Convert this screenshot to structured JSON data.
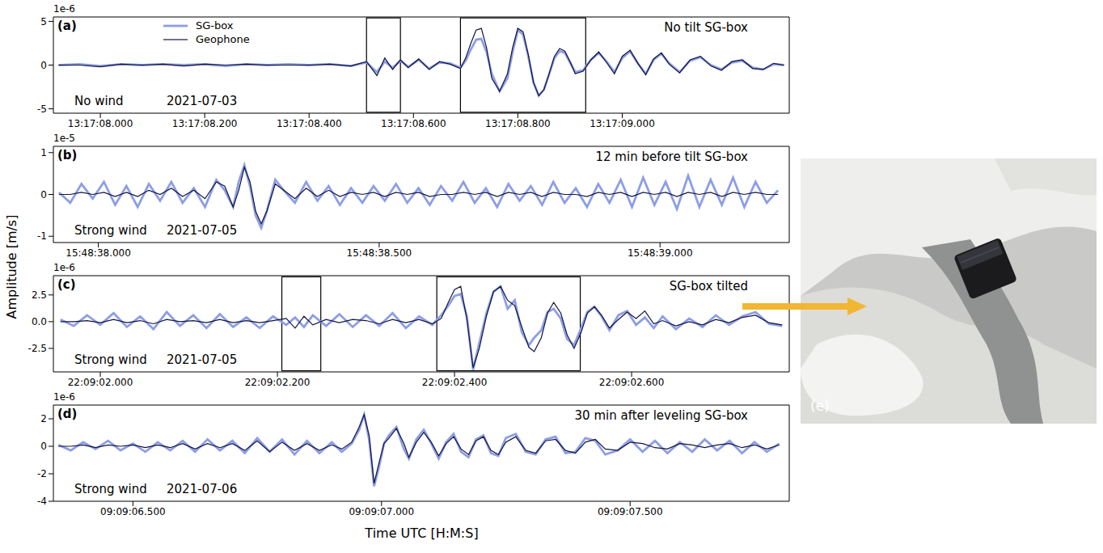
{
  "ylabel": "Amplitude [m/s]",
  "xlabel": "Time UTC [H:M:S]",
  "photo": {
    "label": "(e)"
  },
  "chart_data": [
    {
      "type": "line",
      "panel": "(a)",
      "offset_text": "1e-6",
      "annotation": "No tilt SG-box",
      "wind": "No wind",
      "date": "2021-07-03",
      "legend": "upper left",
      "xlim": [
        7.91,
        9.32
      ],
      "xticks": [
        {
          "value": 8.0,
          "label": "13:17:08.000"
        },
        {
          "value": 8.2,
          "label": "13:17:08.200"
        },
        {
          "value": 8.4,
          "label": "13:17:08.400"
        },
        {
          "value": 8.6,
          "label": "13:17:08.600"
        },
        {
          "value": 8.8,
          "label": "13:17:08.800"
        },
        {
          "value": 9.0,
          "label": "13:17:09.000"
        }
      ],
      "ylim": [
        -5.5,
        5.5
      ],
      "yticks": [
        -5,
        0,
        5
      ],
      "boxes": [
        {
          "x": [
            8.51,
            8.575
          ],
          "y": [
            -5.4,
            5.4
          ]
        },
        {
          "x": [
            8.69,
            8.93
          ],
          "y": [
            -5.4,
            5.4
          ]
        }
      ],
      "x": [
        7.92,
        7.96,
        8.0,
        8.04,
        8.08,
        8.12,
        8.16,
        8.2,
        8.24,
        8.28,
        8.32,
        8.36,
        8.4,
        8.44,
        8.48,
        8.51,
        8.53,
        8.545,
        8.56,
        8.575,
        8.59,
        8.61,
        8.63,
        8.65,
        8.67,
        8.69,
        8.7,
        8.71,
        8.72,
        8.73,
        8.74,
        8.75,
        8.765,
        8.78,
        8.79,
        8.8,
        8.81,
        8.82,
        8.83,
        8.84,
        8.85,
        8.86,
        8.87,
        8.88,
        8.89,
        8.9,
        8.91,
        8.925,
        8.94,
        8.955,
        8.97,
        8.985,
        9.0,
        9.015,
        9.03,
        9.045,
        9.06,
        9.075,
        9.09,
        9.11,
        9.13,
        9.15,
        9.17,
        9.19,
        9.21,
        9.23,
        9.25,
        9.27,
        9.29,
        9.31
      ],
      "series": [
        {
          "name": "SG-box",
          "color": "#8c9ee6",
          "values": [
            0,
            0.1,
            -0.1,
            0.1,
            0,
            0.1,
            0,
            0.1,
            -0.1,
            0.1,
            0,
            0.1,
            0,
            0.1,
            -0.1,
            0.3,
            -0.8,
            0.4,
            -0.3,
            0.5,
            -0.2,
            0.6,
            -0.4,
            0.3,
            0.2,
            -0.3,
            0.5,
            1.8,
            2.9,
            3.0,
            1.5,
            -1.0,
            -3.0,
            -1.5,
            1.5,
            4.0,
            3.5,
            1.0,
            -2.0,
            -3.5,
            -2.8,
            -1.0,
            0.8,
            1.6,
            1.4,
            0.3,
            -0.8,
            -0.6,
            0.6,
            1.4,
            0.4,
            -0.8,
            0.8,
            1.6,
            0.2,
            -1.0,
            0.6,
            1.3,
            0.2,
            -0.8,
            0.5,
            0.9,
            0,
            -0.5,
            0.3,
            0.5,
            -0.3,
            -0.5,
            0.1,
            0
          ]
        },
        {
          "name": "Geophone",
          "color": "#14143f",
          "values": [
            0,
            0,
            -0.2,
            0.1,
            0,
            0.1,
            -0.1,
            0.1,
            0,
            0.1,
            0,
            0,
            0,
            0.1,
            -0.1,
            0.4,
            -1.2,
            0.8,
            -0.5,
            0.6,
            -0.3,
            0.7,
            -0.5,
            0.4,
            0.1,
            -0.4,
            0.8,
            2.5,
            4.0,
            4.2,
            2.0,
            -1.5,
            -3.0,
            -1.0,
            2.0,
            4.2,
            3.8,
            1.2,
            -2.0,
            -3.5,
            -2.8,
            -1.0,
            1.0,
            1.9,
            1.6,
            0.4,
            -1.0,
            -0.7,
            0.6,
            1.5,
            0.3,
            -1.0,
            1.0,
            1.7,
            0.2,
            -1.1,
            0.7,
            1.4,
            0.1,
            -0.9,
            0.6,
            1.0,
            -0.1,
            -0.6,
            0.4,
            0.6,
            -0.4,
            -0.5,
            0.2,
            0
          ]
        }
      ]
    },
    {
      "type": "line",
      "panel": "(b)",
      "offset_text": "1e-5",
      "annotation": "12 min before tilt SG-box",
      "wind": "Strong wind",
      "date": "2021-07-05",
      "xlim": [
        37.92,
        39.23
      ],
      "xticks": [
        {
          "value": 38.0,
          "label": "15:48:38.000"
        },
        {
          "value": 38.5,
          "label": "15:48:38.500"
        },
        {
          "value": 39.0,
          "label": "15:48:39.000"
        }
      ],
      "ylim": [
        -1.15,
        1.15
      ],
      "yticks": [
        -1,
        0,
        1
      ],
      "boxes": [],
      "x": [
        37.93,
        37.95,
        37.97,
        37.99,
        38.01,
        38.03,
        38.05,
        38.07,
        38.09,
        38.11,
        38.13,
        38.15,
        38.17,
        38.19,
        38.21,
        38.225,
        38.24,
        38.25,
        38.26,
        38.27,
        38.28,
        38.29,
        38.3,
        38.315,
        38.33,
        38.35,
        38.37,
        38.39,
        38.41,
        38.43,
        38.45,
        38.47,
        38.49,
        38.51,
        38.53,
        38.55,
        38.57,
        38.59,
        38.61,
        38.63,
        38.65,
        38.67,
        38.69,
        38.71,
        38.73,
        38.75,
        38.77,
        38.79,
        38.81,
        38.83,
        38.85,
        38.87,
        38.89,
        38.91,
        38.93,
        38.95,
        38.97,
        38.99,
        39.01,
        39.03,
        39.05,
        39.07,
        39.09,
        39.11,
        39.13,
        39.15,
        39.17,
        39.19,
        39.21
      ],
      "series": [
        {
          "name": "SG-box",
          "color": "#8c9ee6",
          "values": [
            0.05,
            -0.2,
            0.25,
            -0.1,
            0.3,
            -0.25,
            0.2,
            -0.3,
            0.25,
            -0.15,
            0.3,
            -0.2,
            0.15,
            -0.3,
            0.35,
            0.1,
            -0.3,
            0.3,
            0.7,
            0.2,
            -0.5,
            -0.8,
            -0.4,
            0.35,
            0.1,
            -0.2,
            0.3,
            -0.15,
            0.2,
            -0.25,
            0.15,
            -0.2,
            0.2,
            -0.15,
            0.25,
            -0.2,
            0.15,
            -0.25,
            0.2,
            -0.15,
            0.3,
            -0.2,
            0.15,
            -0.3,
            0.25,
            -0.15,
            0.2,
            -0.25,
            0.3,
            -0.2,
            0.15,
            -0.3,
            0.25,
            -0.2,
            0.35,
            -0.3,
            0.4,
            -0.25,
            0.3,
            -0.35,
            0.45,
            -0.3,
            0.35,
            -0.25,
            0.4,
            -0.3,
            0.3,
            -0.2,
            0.1
          ]
        },
        {
          "name": "Geophone",
          "color": "#14143f",
          "values": [
            0,
            0,
            0.05,
            0,
            0.05,
            -0.05,
            0.05,
            -0.05,
            0.1,
            0,
            0.15,
            -0.05,
            0.1,
            -0.1,
            0.3,
            0.2,
            -0.3,
            0.1,
            0.65,
            0.3,
            -0.4,
            -0.7,
            -0.4,
            0.25,
            0.1,
            -0.1,
            0.15,
            -0.05,
            0.1,
            -0.05,
            0.05,
            0,
            0.05,
            -0.05,
            0.05,
            0,
            0.05,
            -0.05,
            0,
            0,
            0.05,
            0,
            0.05,
            -0.05,
            0.05,
            0,
            0.05,
            -0.05,
            0.05,
            0,
            0,
            -0.05,
            0.05,
            0,
            0.05,
            -0.05,
            0.05,
            0,
            0.05,
            -0.05,
            0.05,
            0,
            0.05,
            -0.05,
            0.05,
            0,
            0.05,
            0,
            0
          ]
        }
      ]
    },
    {
      "type": "line",
      "panel": "(c)",
      "offset_text": "1e-6",
      "annotation": "SG-box tilted",
      "wind": "Strong wind",
      "date": "2021-07-05",
      "xlim": [
        1.947,
        2.778
      ],
      "xticks": [
        {
          "value": 2.0,
          "label": "22:09:02.000"
        },
        {
          "value": 2.2,
          "label": "22:09:02.200"
        },
        {
          "value": 2.4,
          "label": "22:09:02.400"
        },
        {
          "value": 2.6,
          "label": "22:09:02.600"
        }
      ],
      "ylim": [
        -4.7,
        4.3
      ],
      "yticks": [
        -2.5,
        {
          "value": 0,
          "label": "0.0"
        },
        2.5
      ],
      "boxes": [
        {
          "x": [
            2.205,
            2.249
          ],
          "y": [
            -4.6,
            4.2
          ]
        },
        {
          "x": [
            2.38,
            2.542
          ],
          "y": [
            -4.6,
            4.2
          ]
        }
      ],
      "x": [
        1.955,
        1.97,
        1.985,
        2.0,
        2.015,
        2.03,
        2.045,
        2.06,
        2.075,
        2.09,
        2.105,
        2.12,
        2.135,
        2.15,
        2.165,
        2.18,
        2.195,
        2.21,
        2.22,
        2.23,
        2.24,
        2.255,
        2.27,
        2.285,
        2.3,
        2.315,
        2.33,
        2.345,
        2.36,
        2.375,
        2.385,
        2.393,
        2.4,
        2.407,
        2.414,
        2.421,
        2.428,
        2.436,
        2.444,
        2.452,
        2.46,
        2.468,
        2.476,
        2.484,
        2.49,
        2.498,
        2.505,
        2.512,
        2.52,
        2.527,
        2.535,
        2.543,
        2.55,
        2.558,
        2.566,
        2.575,
        2.585,
        2.595,
        2.605,
        2.615,
        2.625,
        2.635,
        2.65,
        2.665,
        2.68,
        2.695,
        2.71,
        2.725,
        2.74,
        2.755,
        2.77
      ],
      "series": [
        {
          "name": "SG-box",
          "color": "#8c9ee6",
          "values": [
            0.2,
            -0.4,
            0.6,
            -0.3,
            0.8,
            -0.5,
            0.5,
            -0.7,
            0.9,
            -0.4,
            0.6,
            -0.6,
            0.7,
            -0.5,
            0.4,
            -0.6,
            0.5,
            -0.3,
            0.4,
            -0.5,
            0.6,
            -0.4,
            0.7,
            -0.5,
            0.6,
            -0.4,
            0.8,
            -0.6,
            0.5,
            -0.3,
            0.6,
            1.5,
            2.4,
            2.6,
            0.5,
            -4.5,
            -2.0,
            0.8,
            2.8,
            3.3,
            1.2,
            2.0,
            -1.0,
            -2.2,
            -1.5,
            -0.8,
            0.9,
            1.2,
            0.3,
            -1.6,
            -2.2,
            -0.6,
            0.9,
            1.4,
            0.5,
            -0.8,
            0.6,
            1.0,
            -0.3,
            0.4,
            -0.6,
            0.5,
            -0.7,
            0.3,
            -0.5,
            0.6,
            -0.3,
            0.5,
            0.9,
            -0.2,
            -0.4
          ]
        },
        {
          "name": "Geophone",
          "color": "#14143f",
          "values": [
            0,
            0,
            0.1,
            -0.1,
            0.2,
            -0.1,
            0.1,
            -0.2,
            0.2,
            0,
            0.1,
            -0.1,
            0.2,
            -0.1,
            0.1,
            -0.1,
            0.1,
            0.3,
            -0.6,
            0.5,
            -0.3,
            0.2,
            -0.1,
            0.2,
            0.1,
            -0.2,
            0.2,
            -0.1,
            0.2,
            -0.2,
            0.3,
            1.8,
            3.0,
            3.3,
            0.2,
            -4.3,
            -2.5,
            0.5,
            2.8,
            3.3,
            2.0,
            1.5,
            -0.5,
            -2.4,
            -2.8,
            -1.5,
            0.8,
            1.8,
            0.8,
            -1.2,
            -2.5,
            -1.0,
            0.8,
            1.4,
            0.6,
            -0.6,
            0.2,
            0.9,
            0.3,
            1.0,
            -0.2,
            0.1,
            -0.4,
            0.0,
            -0.3,
            0.2,
            -0.1,
            0.4,
            0.6,
            -0.1,
            -0.3
          ]
        }
      ]
    },
    {
      "type": "line",
      "panel": "(d)",
      "offset_text": "1e-6",
      "annotation": "30 min after leveling SG-box",
      "wind": "Strong wind",
      "date": "2021-07-06",
      "xlim": [
        6.34,
        7.82
      ],
      "xticks": [
        {
          "value": 6.5,
          "label": "09:09:06.500"
        },
        {
          "value": 7.0,
          "label": "09:09:07.000"
        },
        {
          "value": 7.5,
          "label": "09:09:07.500"
        }
      ],
      "ylim": [
        -4,
        3
      ],
      "yticks": [
        -4,
        -2,
        0,
        2
      ],
      "boxes": [],
      "x": [
        6.35,
        6.375,
        6.4,
        6.425,
        6.45,
        6.475,
        6.5,
        6.525,
        6.55,
        6.575,
        6.6,
        6.625,
        6.65,
        6.675,
        6.7,
        6.725,
        6.75,
        6.775,
        6.8,
        6.825,
        6.85,
        6.875,
        6.9,
        6.92,
        6.94,
        6.955,
        6.965,
        6.975,
        6.985,
        6.995,
        7.005,
        7.015,
        7.03,
        7.045,
        7.055,
        7.07,
        7.085,
        7.1,
        7.115,
        7.13,
        7.145,
        7.16,
        7.175,
        7.19,
        7.205,
        7.22,
        7.235,
        7.25,
        7.27,
        7.29,
        7.31,
        7.33,
        7.35,
        7.37,
        7.39,
        7.41,
        7.43,
        7.45,
        7.475,
        7.5,
        7.525,
        7.55,
        7.575,
        7.6,
        7.625,
        7.65,
        7.675,
        7.7,
        7.725,
        7.75,
        7.775,
        7.8
      ],
      "series": [
        {
          "name": "SG-box",
          "color": "#8c9ee6",
          "values": [
            0.1,
            -0.3,
            0.3,
            -0.2,
            0.4,
            -0.3,
            0.2,
            -0.4,
            0.3,
            -0.3,
            0.4,
            -0.4,
            0.5,
            -0.3,
            0.4,
            -0.5,
            0.6,
            -0.4,
            0.5,
            -0.6,
            0.4,
            -0.5,
            0.3,
            -0.4,
            0.2,
            1.2,
            2.3,
            0.5,
            -2.9,
            -1.5,
            0.2,
            0.8,
            1.4,
            -0.2,
            -0.9,
            0.5,
            1.2,
            0.2,
            -0.9,
            0.3,
            0.9,
            -0.4,
            -0.8,
            0.5,
            0.8,
            -0.5,
            -0.7,
            0.6,
            0.9,
            -0.4,
            -0.6,
            0.5,
            0.7,
            -0.5,
            -0.4,
            0.6,
            0.4,
            -0.6,
            -0.3,
            0.5,
            -0.4,
            0.4,
            -0.5,
            0.3,
            -0.4,
            0.5,
            -0.3,
            0.4,
            -0.5,
            0.3,
            -0.4,
            0.2
          ]
        },
        {
          "name": "Geophone",
          "color": "#14143f",
          "values": [
            0,
            0,
            0.1,
            -0.1,
            0.1,
            0,
            0.1,
            -0.1,
            0.1,
            -0.1,
            0.2,
            -0.2,
            0.2,
            -0.1,
            0.2,
            -0.3,
            0.4,
            -0.4,
            0.3,
            -0.3,
            0.2,
            -0.3,
            0.1,
            -0.2,
            0.3,
            1.4,
            2.3,
            0.8,
            -2.7,
            -1.2,
            0.2,
            0.6,
            1.3,
            0.2,
            -0.8,
            0.3,
            1.0,
            0.3,
            -0.7,
            0.2,
            0.7,
            -0.2,
            -0.6,
            0.4,
            0.7,
            -0.3,
            -0.6,
            0.3,
            0.7,
            -0.3,
            -0.5,
            0.4,
            0.5,
            -0.3,
            -0.5,
            0.3,
            0.5,
            -0.2,
            -0.3,
            0.3,
            0.2,
            -0.1,
            -0.2,
            0.2,
            0.1,
            -0.1,
            0.1,
            0.2,
            -0.1,
            0.1,
            -0.2,
            0.1
          ]
        }
      ]
    }
  ]
}
